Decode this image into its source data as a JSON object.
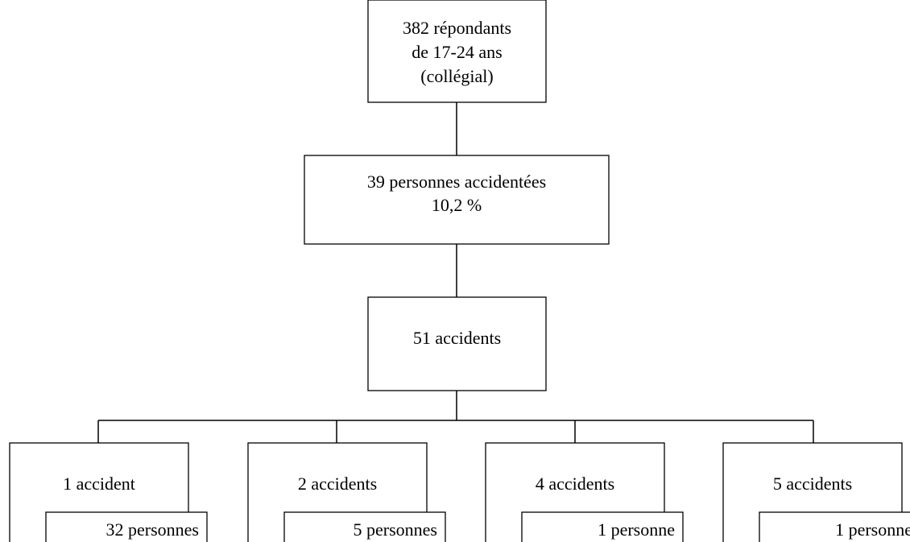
{
  "nodes": [
    {
      "lines": [
        "382 répondants",
        "de 17-24 ans",
        "(collégial)"
      ]
    },
    {
      "lines": [
        "39 personnes accidentées",
        "10,2 %"
      ]
    },
    {
      "lines": [
        "51 accidents"
      ]
    }
  ],
  "branches": [
    {
      "label": "1 accident",
      "persons": "32 personnes"
    },
    {
      "label": "2 accidents",
      "persons": "5 personnes"
    },
    {
      "label": "4 accidents",
      "persons": "1 personne"
    },
    {
      "label": "5 accidents",
      "persons": "1 personne"
    }
  ]
}
